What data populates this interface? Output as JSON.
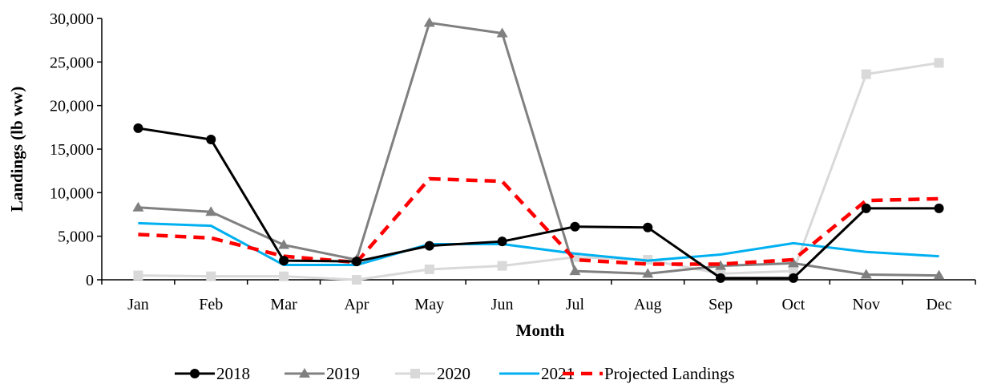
{
  "chart_data": {
    "type": "line",
    "xlabel": "Month",
    "ylabel": "Landings (lb ww)",
    "categories": [
      "Jan",
      "Feb",
      "Mar",
      "Apr",
      "May",
      "Jun",
      "Jul",
      "Aug",
      "Sep",
      "Oct",
      "Nov",
      "Dec"
    ],
    "y_ticks": [
      "0",
      "5,000",
      "10,000",
      "15,000",
      "20,000",
      "25,000",
      "30,000"
    ],
    "ylim": [
      0,
      30000
    ],
    "grid": false,
    "legend_position": "bottom",
    "series": [
      {
        "name": "2018",
        "color": "#000000",
        "marker": "circle",
        "dash": "solid",
        "values": [
          17400,
          16100,
          2200,
          2100,
          3900,
          4400,
          6100,
          6000,
          200,
          200,
          8200,
          8200
        ]
      },
      {
        "name": "2019",
        "color": "#808080",
        "marker": "triangle",
        "dash": "solid",
        "values": [
          8300,
          7800,
          4000,
          2300,
          29500,
          28300,
          1000,
          700,
          1600,
          1900,
          600,
          500
        ]
      },
      {
        "name": "2020",
        "color": "#d9d9d9",
        "marker": "square",
        "dash": "solid",
        "values": [
          500,
          400,
          400,
          0,
          1200,
          1600,
          2600,
          2300,
          700,
          1000,
          23600,
          24900
        ]
      },
      {
        "name": "2021",
        "color": "#00b0f0",
        "marker": "none",
        "dash": "solid",
        "values": [
          6500,
          6200,
          1700,
          1700,
          4100,
          4100,
          3000,
          2200,
          2900,
          4200,
          3200,
          2700
        ]
      },
      {
        "name": "Projected Landings",
        "color": "#ff0000",
        "marker": "none",
        "dash": "dashed",
        "values": [
          5200,
          4800,
          2700,
          2000,
          11600,
          11300,
          2300,
          1800,
          1800,
          2300,
          9100,
          9300
        ]
      }
    ]
  }
}
